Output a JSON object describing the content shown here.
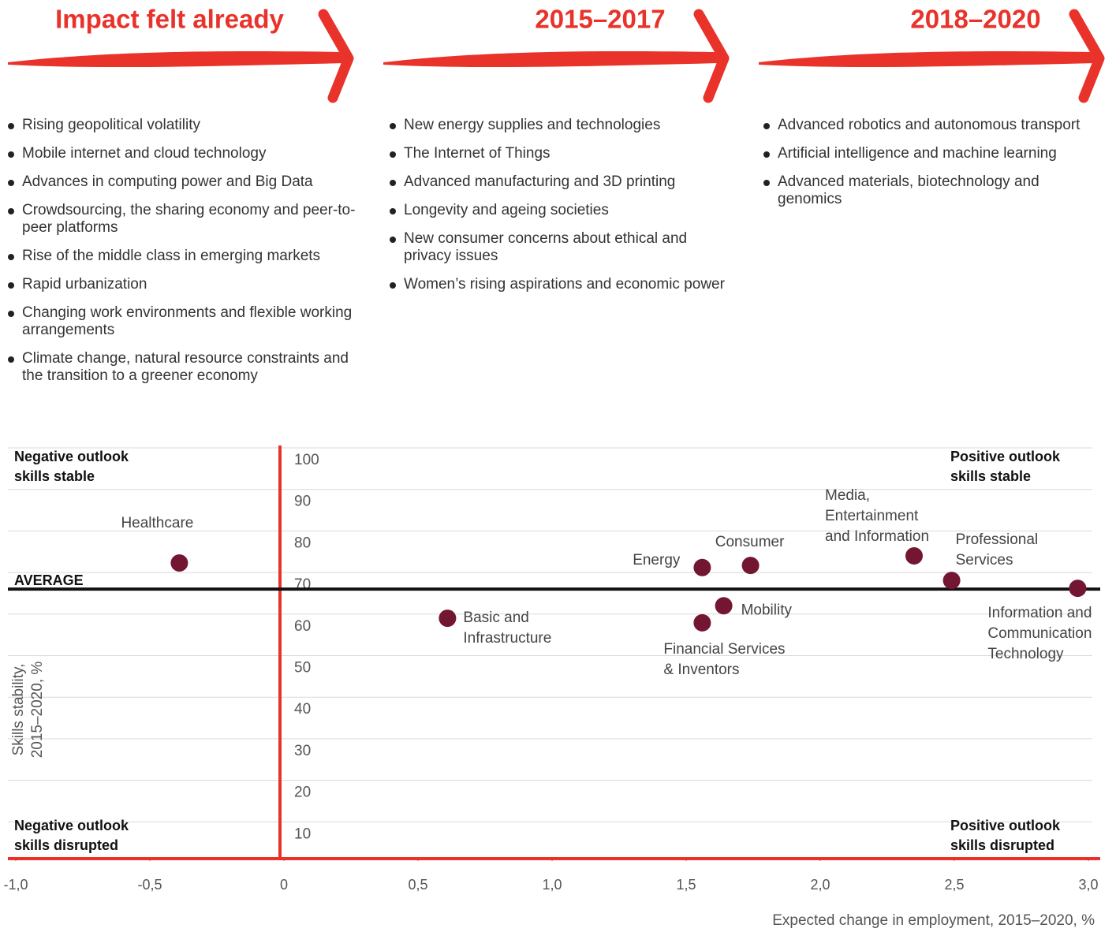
{
  "columns": [
    {
      "title": "Impact felt already",
      "items": [
        "Rising geopolitical volatility",
        "Mobile internet and cloud technology",
        "Advances in computing power and Big Data",
        "Crowdsourcing, the sharing economy and peer-to-peer platforms",
        "Rise of the middle class in emerging markets",
        "Rapid urbanization",
        "Changing work environments and flexible working arrangements",
        "Climate change, natural resource constraints and the transition to a greener economy"
      ]
    },
    {
      "title": "2015–2017",
      "items": [
        "New energy supplies and technologies",
        "The Internet of Things",
        "Advanced manufacturing and 3D printing",
        "Longevity and ageing societies",
        "New consumer concerns about ethical and privacy issues",
        "Women’s rising aspirations and economic power"
      ]
    },
    {
      "title": "2018–2020",
      "items": [
        "Advanced robotics and autonomous transport",
        "Artificial intelligence and machine learning",
        "Advanced materials, biotechnology and genomics"
      ]
    }
  ],
  "chart_data": {
    "type": "scatter",
    "x_label": "Expected change in employment, 2015–2020, %",
    "y_label": [
      "Skills stability,",
      "2015–2020, %"
    ],
    "quadrant_labels": [
      [
        "Negative outlook",
        "skills stable"
      ],
      [
        "Positive outlook",
        "skills stable"
      ],
      [
        "Negative outlook",
        "skills disrupted"
      ],
      [
        "Positive outlook",
        "skills disrupted"
      ]
    ],
    "average_label": "AVERAGE",
    "average": 66,
    "color": "#731632",
    "labels": [
      [
        "Healthcare"
      ],
      [
        "Basic and",
        "Infrastructure"
      ],
      [
        "Energy"
      ],
      [
        "Consumer"
      ],
      [
        "Financial Services",
        "& Inventors"
      ],
      [
        "Mobility"
      ],
      [
        "Media,",
        "Entertainment",
        "and Information"
      ],
      [
        "Professional",
        "Services"
      ],
      [
        "Information and",
        "Communication",
        "Technology"
      ]
    ],
    "x": [
      -0.39,
      0.61,
      1.56,
      1.74,
      1.56,
      1.64,
      2.35,
      2.49,
      2.96
    ],
    "values": [
      72.3,
      59,
      71.2,
      71.7,
      57.9,
      62,
      74,
      68.1,
      66.2
    ],
    "xlim": [
      -1,
      3
    ],
    "ylim": [
      0,
      100
    ],
    "xticks": [
      {
        "value": -1,
        "label": "-1,0"
      },
      {
        "value": -0.5,
        "label": "-0,5"
      },
      0,
      {
        "value": 0.5,
        "label": "0,5"
      },
      {
        "value": 1,
        "label": "1,0"
      },
      {
        "value": 1.5,
        "label": "1,5"
      },
      {
        "value": 2,
        "label": "2,0"
      },
      {
        "value": 2.5,
        "label": "2,5"
      },
      {
        "value": 3,
        "label": "3,0"
      }
    ],
    "yticks": [
      10,
      20,
      30,
      40,
      50,
      60,
      70,
      80,
      90,
      100
    ],
    "grid": true
  }
}
